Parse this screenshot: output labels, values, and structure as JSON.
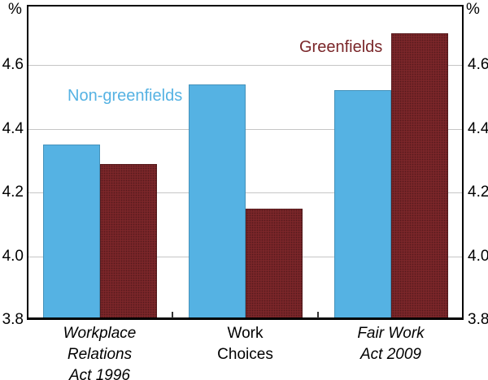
{
  "chart_data": {
    "type": "bar",
    "title": "",
    "ylabel": "%",
    "ylim": [
      3.8,
      4.8
    ],
    "yticks": [
      3.8,
      4.0,
      4.2,
      4.4,
      4.6
    ],
    "gridlines": [
      4.0,
      4.2,
      4.4,
      4.6
    ],
    "grid": true,
    "legend_position": "inside-plot-annotations",
    "categories": [
      {
        "label": "Workplace\nRelations\nAct 1996",
        "italic": true
      },
      {
        "label": "Work\nChoices",
        "italic": false
      },
      {
        "label": "Fair Work\nAct 2009",
        "italic": true
      }
    ],
    "series": [
      {
        "name": "Non-greenfields",
        "color": "#55b2e3",
        "values": [
          4.35,
          4.54,
          4.52
        ]
      },
      {
        "name": "Greenfields",
        "color": "#7a2629",
        "values": [
          4.29,
          4.15,
          4.7
        ]
      }
    ],
    "colors": {
      "gridline": "#c6c6c6",
      "frame": "#000000",
      "text": "#000000"
    }
  }
}
